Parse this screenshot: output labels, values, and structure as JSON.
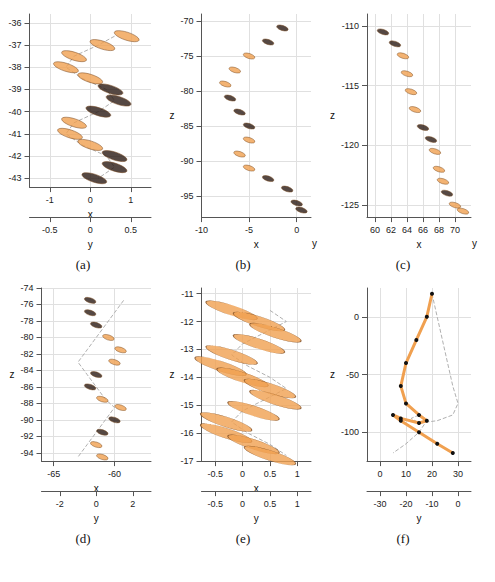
{
  "chart_data": [
    {
      "title": "(a)",
      "type": "scatter",
      "marker": "ellipse",
      "grid": true,
      "xlabel": "x",
      "ylabel": "y",
      "xlim": [
        -1.5,
        1.5
      ],
      "xticks": [
        -1,
        0,
        1
      ],
      "ylim": [
        -0.75,
        0.75
      ],
      "yticks": [
        -0.5,
        0,
        0.5
      ],
      "zlim": [
        -43.4,
        -35.6
      ],
      "zticks": [
        -43,
        -42,
        -41,
        -40,
        -39,
        -38,
        -37,
        -36
      ],
      "x": [
        0.9,
        0.3,
        -0.4,
        -0.6,
        0.0,
        0.5,
        0.7,
        0.2,
        -0.4,
        -0.5,
        0.0,
        0.6,
        0.6,
        0.1
      ],
      "y": [
        0.3,
        0.1,
        -0.2,
        -0.3,
        -0.1,
        0.2,
        0.3,
        0.1,
        -0.2,
        -0.3,
        -0.1,
        0.2,
        0.3,
        0.1
      ],
      "z": [
        -36.6,
        -37.0,
        -37.5,
        -38.0,
        -38.5,
        -39.0,
        -39.5,
        -40.0,
        -40.5,
        -41.0,
        -41.5,
        -42.0,
        -42.5,
        -43.0
      ],
      "colors": [
        "#f0a050",
        "#f0a050",
        "#f0a050",
        "#f0a050",
        "#f0a050",
        "#2a1a14",
        "#2a1a14",
        "#2a1a14",
        "#f0a050",
        "#f0a050",
        "#f0a050",
        "#2a1a14",
        "#2a1a14",
        "#2a1a14"
      ]
    },
    {
      "title": "(b)",
      "type": "scatter",
      "marker": "ellipse",
      "grid": true,
      "xlabel": "x",
      "ylabel": "y",
      "zlabel": "z",
      "xlim": [
        -10,
        1.5
      ],
      "xticks": [
        -10,
        -5,
        0
      ],
      "zlim": [
        -98,
        -69
      ],
      "zticks": [
        -95,
        -90,
        -85,
        -80,
        -75,
        -70
      ],
      "x": [
        -1.5,
        -3,
        -5,
        -6.5,
        -7.5,
        -7,
        -6,
        -5,
        -5,
        -6,
        -5,
        -3,
        -1,
        0,
        0.5
      ],
      "z": [
        -71,
        -73,
        -75,
        -77,
        -79,
        -81,
        -83,
        -85,
        -87,
        -89,
        -91,
        -92.5,
        -94,
        -96,
        -97
      ],
      "colors": [
        "#2a1a14",
        "#2a1a14",
        "#f0a050",
        "#f0a050",
        "#f0a050",
        "#2a1a14",
        "#2a1a14",
        "#2a1a14",
        "#f0a050",
        "#f0a050",
        "#f0a050",
        "#2a1a14",
        "#2a1a14",
        "#2a1a14",
        "#2a1a14"
      ]
    },
    {
      "title": "(c)",
      "type": "scatter",
      "marker": "ellipse",
      "grid": true,
      "xlabel": "x",
      "ylabel": "y",
      "zlabel": "z",
      "xlim": [
        59,
        72
      ],
      "xticks": [
        60,
        62,
        64,
        66,
        68,
        70
      ],
      "zlim": [
        -126,
        -109
      ],
      "zticks": [
        -125,
        -120,
        -115,
        -110
      ],
      "x": [
        61,
        62.5,
        63.5,
        64,
        64.5,
        65,
        66,
        67,
        67.5,
        68,
        68.5,
        69,
        70,
        71
      ],
      "z": [
        -110.5,
        -111.5,
        -112.5,
        -114,
        -115.5,
        -117,
        -118.5,
        -119.5,
        -120.5,
        -122,
        -123,
        -124,
        -125,
        -125.5
      ],
      "colors": [
        "#2a1a14",
        "#2a1a14",
        "#f0a050",
        "#f0a050",
        "#f0a050",
        "#f0a050",
        "#2a1a14",
        "#2a1a14",
        "#f0a050",
        "#f0a050",
        "#f0a050",
        "#2a1a14",
        "#f0a050",
        "#f0a050"
      ]
    },
    {
      "title": "(d)",
      "type": "scatter",
      "marker": "ellipse",
      "grid": true,
      "xlabel": "x",
      "ylabel": "y",
      "zlabel": "z",
      "xlim": [
        -66,
        -57
      ],
      "xticks": [
        -65,
        -60
      ],
      "ylim": [
        -3,
        3
      ],
      "yticks": [
        -2,
        0,
        2
      ],
      "zlim": [
        -95,
        -74
      ],
      "zticks": [
        -94,
        -92,
        -90,
        -88,
        -86,
        -84,
        -82,
        -80,
        -78,
        -76,
        -74
      ],
      "x": [
        -62,
        -62,
        -61.5,
        -60.5,
        -59.5,
        -60,
        -61.5,
        -62,
        -61,
        -59.5,
        -60,
        -61,
        -61.5,
        -61
      ],
      "y": [
        1.5,
        1.0,
        0.5,
        0.0,
        -0.5,
        -1.0,
        -0.5,
        0.0,
        0.5,
        1.0,
        0.5,
        0.0,
        -0.5,
        -1.0
      ],
      "z": [
        -75.5,
        -77,
        -78.5,
        -80,
        -81.5,
        -83,
        -84.5,
        -86,
        -87.5,
        -88.5,
        -90,
        -91.5,
        -93,
        -94.5
      ],
      "colors": [
        "#2a1a14",
        "#2a1a14",
        "#2a1a14",
        "#f0a050",
        "#f0a050",
        "#f0a050",
        "#2a1a14",
        "#2a1a14",
        "#f0a050",
        "#f0a050",
        "#2a1a14",
        "#2a1a14",
        "#f0a050",
        "#f0a050"
      ]
    },
    {
      "title": "(e)",
      "type": "scatter",
      "marker": "ellipse",
      "grid": true,
      "xlabel": "x",
      "ylabel": "y",
      "zlabel": "z",
      "xlim": [
        -0.75,
        1.25
      ],
      "xticks": [
        -0.5,
        0,
        0.5,
        1
      ],
      "ylim": [
        -0.75,
        1.25
      ],
      "yticks": [
        -0.5,
        0,
        0.5,
        1
      ],
      "zlim": [
        -17,
        -10.8
      ],
      "zticks": [
        -17,
        -16,
        -15,
        -14,
        -13,
        -12,
        -11
      ],
      "x": [
        -0.2,
        0.3,
        0.6,
        0.3,
        -0.2,
        -0.4,
        0.0,
        0.5,
        0.6,
        0.2,
        -0.3,
        -0.3,
        0.2,
        0.5
      ],
      "y": [
        0.5,
        0.8,
        0.4,
        0.0,
        -0.2,
        0.1,
        0.5,
        0.8,
        0.4,
        0.0,
        -0.2,
        0.1,
        0.5,
        0.8
      ],
      "z": [
        -11.6,
        -12.0,
        -12.4,
        -12.8,
        -13.2,
        -13.6,
        -14.0,
        -14.4,
        -14.8,
        -15.2,
        -15.6,
        -16.0,
        -16.4,
        -16.8
      ],
      "colors": [
        "#f0a050",
        "#f0a050",
        "#f0a050",
        "#f0a050",
        "#f0a050",
        "#f0a050",
        "#f0a050",
        "#f0a050",
        "#f0a050",
        "#f0a050",
        "#f0a050",
        "#f0a050",
        "#f0a050",
        "#f0a050"
      ]
    },
    {
      "title": "(f)",
      "type": "line",
      "marker": "circle",
      "color": "#f0a050",
      "grid": true,
      "ylabel": "y",
      "zlabel": "z",
      "xlim": [
        -5,
        35
      ],
      "xticks": [
        0,
        10,
        20,
        30
      ],
      "ylim": [
        -35,
        5
      ],
      "yticks": [
        -30,
        -20,
        -10,
        0
      ],
      "zlim": [
        -125,
        25
      ],
      "zticks": [
        -100,
        -50,
        0
      ],
      "x": [
        20,
        18,
        14,
        10,
        8,
        10,
        15,
        18,
        15,
        8,
        5,
        8,
        15,
        22,
        28
      ],
      "y": [
        -10,
        -8,
        -6,
        -4,
        -2,
        0,
        -2,
        -8,
        -15,
        -18,
        -15,
        -12,
        -15,
        -20,
        -25
      ],
      "z": [
        20,
        0,
        -20,
        -40,
        -60,
        -75,
        -85,
        -90,
        -92,
        -88,
        -85,
        -90,
        -100,
        -110,
        -118
      ]
    }
  ]
}
